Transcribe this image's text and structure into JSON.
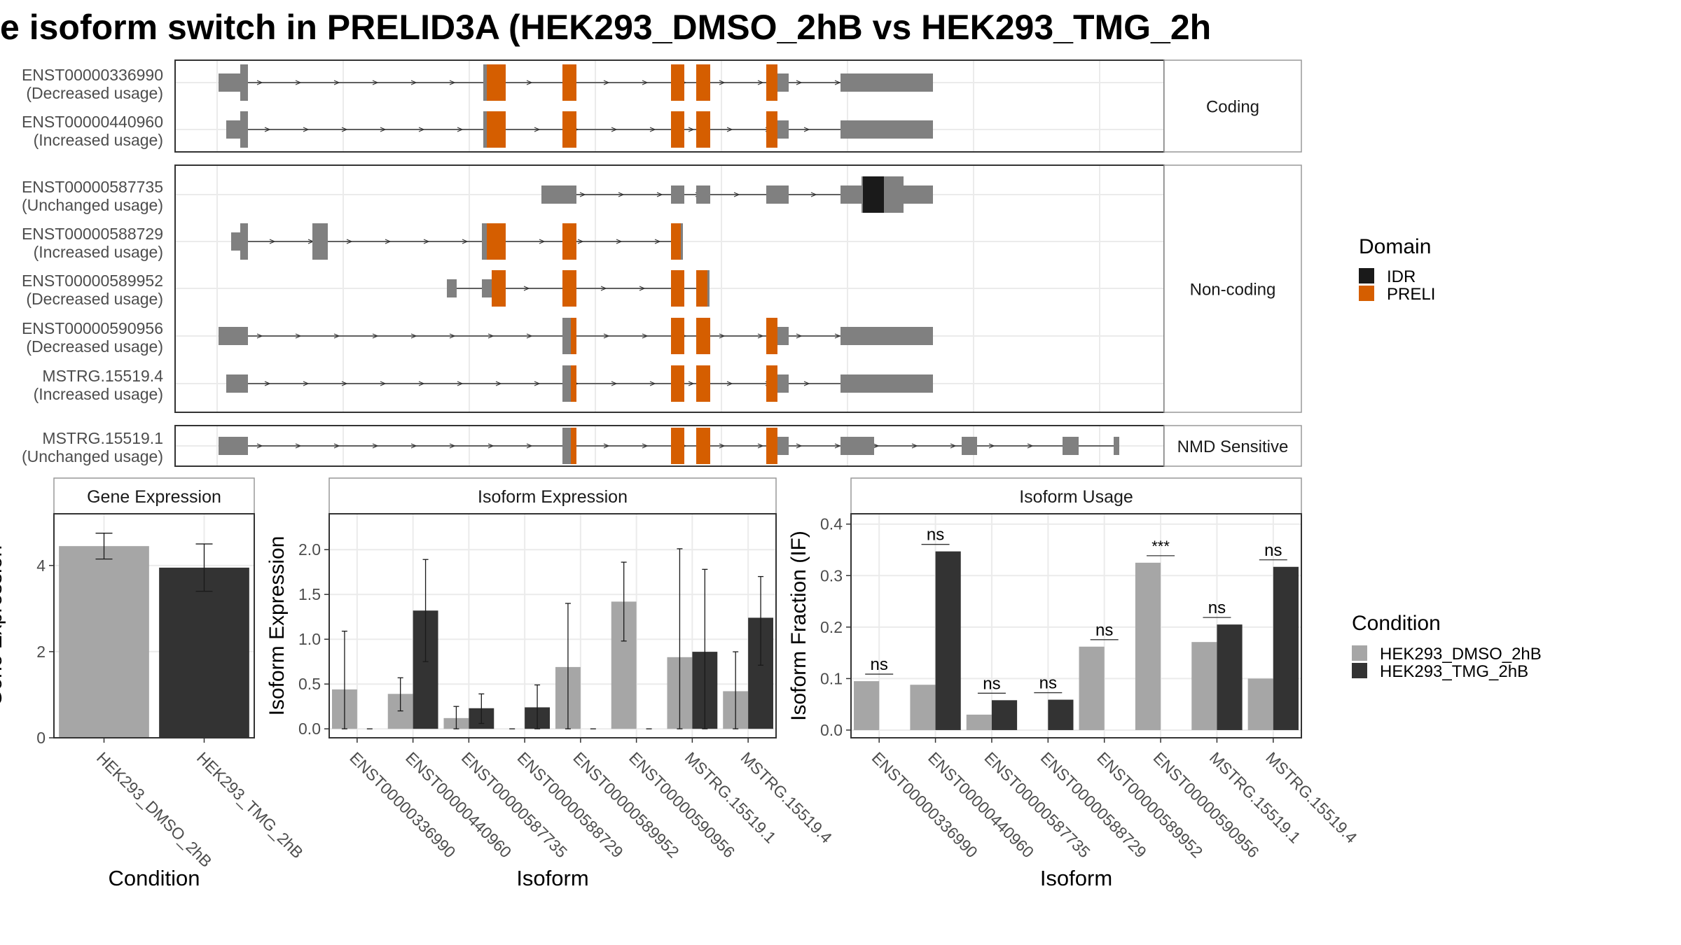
{
  "title": "e isoform switch in PRELID3A (HEK293_DMSO_2hB vs HEK293_TMG_2h",
  "colors": {
    "orf": "#808080",
    "preli": "#D55E00",
    "idr": "#1a1a1a",
    "dmso": "#a6a6a6",
    "tmg": "#333333",
    "panel_border": "#333333",
    "grid": "#ebebeb"
  },
  "structure": {
    "groups": [
      {
        "label": "Coding",
        "transcripts": [
          {
            "id": "ENST00000336990",
            "usage": "(Decreased usage)"
          },
          {
            "id": "ENST00000440960",
            "usage": "(Increased usage)"
          }
        ]
      },
      {
        "label": "Non-coding",
        "transcripts": [
          {
            "id": "ENST00000587735",
            "usage": "(Unchanged usage)"
          },
          {
            "id": "ENST00000588729",
            "usage": "(Increased usage)"
          },
          {
            "id": "ENST00000589952",
            "usage": "(Decreased usage)"
          },
          {
            "id": "ENST00000590956",
            "usage": "(Decreased usage)"
          },
          {
            "id": "MSTRG.15519.4",
            "usage": "(Increased usage)"
          }
        ]
      },
      {
        "label": "NMD Sensitive",
        "transcripts": [
          {
            "id": "MSTRG.15519.1",
            "usage": "(Unchanged usage)"
          }
        ]
      }
    ]
  },
  "legends": {
    "domain": {
      "title": "Domain",
      "items": [
        "IDR",
        "PRELI"
      ]
    },
    "condition": {
      "title": "Condition",
      "items": [
        "HEK293_DMSO_2hB",
        "HEK293_TMG_2hB"
      ]
    }
  },
  "chart_data": [
    {
      "type": "bar",
      "title": "Gene Expression",
      "xlabel": "Condition",
      "ylabel": "Gene Expression",
      "categories": [
        "HEK293_DMSO_2hB",
        "HEK293_TMG_2hB"
      ],
      "values": [
        4.45,
        3.95
      ],
      "error_low": [
        4.15,
        3.4
      ],
      "error_high": [
        4.75,
        4.5
      ],
      "yticks": [
        "0",
        "2",
        "4"
      ],
      "ylim": [
        0,
        5.2
      ]
    },
    {
      "type": "bar",
      "title": "Isoform Expression",
      "xlabel": "Isoform",
      "ylabel": "Isoform Expression",
      "categories": [
        "ENST00000336990",
        "ENST00000440960",
        "ENST00000587735",
        "ENST00000588729",
        "ENST00000589952",
        "ENST00000590956",
        "MSTRG.15519.1",
        "MSTRG.15519.4"
      ],
      "series": [
        {
          "name": "HEK293_DMSO_2hB",
          "values": [
            0.44,
            0.39,
            0.12,
            0.0,
            0.69,
            1.42,
            0.8,
            0.42
          ],
          "error_low": [
            0.0,
            0.2,
            0.0,
            0.0,
            0.0,
            0.98,
            0.0,
            0.0
          ],
          "error_high": [
            1.09,
            0.57,
            0.25,
            0.0,
            1.4,
            1.86,
            2.01,
            0.86
          ]
        },
        {
          "name": "HEK293_TMG_2hB",
          "values": [
            0.0,
            1.32,
            0.23,
            0.24,
            0.0,
            0.0,
            0.86,
            1.24
          ],
          "error_low": [
            0.0,
            0.75,
            0.06,
            0.0,
            0.0,
            0.0,
            0.0,
            0.71
          ],
          "error_high": [
            0.0,
            1.89,
            0.39,
            0.49,
            0.0,
            0.0,
            1.78,
            1.7
          ]
        }
      ],
      "yticks": [
        "0.0",
        "0.5",
        "1.0",
        "1.5",
        "2.0"
      ],
      "ylim": [
        -0.1,
        2.4
      ]
    },
    {
      "type": "bar",
      "title": "Isoform Usage",
      "xlabel": "Isoform",
      "ylabel": "Isoform Fraction (IF)",
      "categories": [
        "ENST00000336990",
        "ENST00000440960",
        "ENST00000587735",
        "ENST00000588729",
        "ENST00000589952",
        "ENST00000590956",
        "MSTRG.15519.1",
        "MSTRG.15519.4"
      ],
      "series": [
        {
          "name": "HEK293_DMSO_2hB",
          "values": [
            0.095,
            0.088,
            0.03,
            0.0,
            0.162,
            0.325,
            0.171,
            0.1
          ]
        },
        {
          "name": "HEK293_TMG_2hB",
          "values": [
            0.0,
            0.347,
            0.058,
            0.059,
            0.0,
            0.0,
            0.205,
            0.317
          ]
        }
      ],
      "significance": [
        "ns",
        "ns",
        "ns",
        "ns",
        "ns",
        "***",
        "ns",
        "ns"
      ],
      "yticks": [
        "0.0",
        "0.1",
        "0.2",
        "0.3",
        "0.4"
      ],
      "ylim": [
        -0.015,
        0.42
      ]
    }
  ]
}
